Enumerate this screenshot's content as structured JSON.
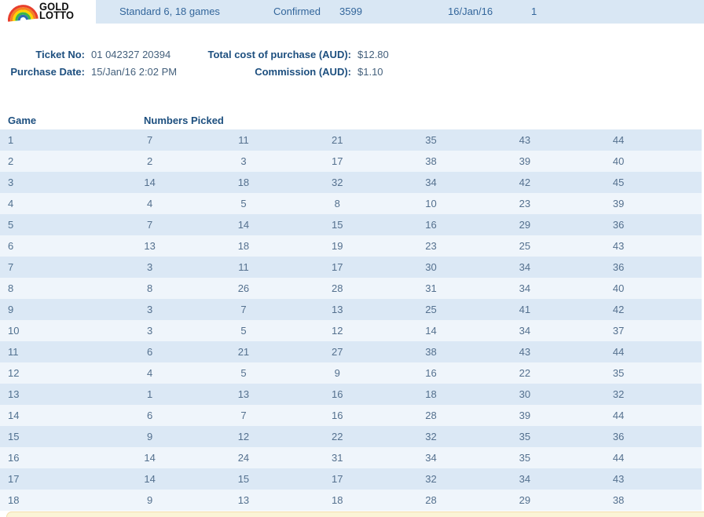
{
  "header": {
    "logo_line1": "GOLD",
    "logo_line2": "LOTTO",
    "game_type": "Standard 6, 18 games",
    "status": "Confirmed",
    "draw_number": "3599",
    "draw_date": "16/Jan/16",
    "draw_count": "1"
  },
  "ticket_info": {
    "ticket_no_label": "Ticket No:",
    "ticket_no_value": "01 042327 20394",
    "purchase_date_label": "Purchase Date:",
    "purchase_date_value": "15/Jan/16 2:02 PM",
    "total_cost_label": "Total cost of purchase (AUD):",
    "total_cost_value": "$12.80",
    "commission_label": "Commission (AUD):",
    "commission_value": "$1.10"
  },
  "games_table": {
    "game_header": "Game",
    "numbers_header": "Numbers Picked",
    "rows": [
      {
        "game": "1",
        "numbers": [
          7,
          11,
          21,
          35,
          43,
          44
        ]
      },
      {
        "game": "2",
        "numbers": [
          2,
          3,
          17,
          38,
          39,
          40
        ]
      },
      {
        "game": "3",
        "numbers": [
          14,
          18,
          32,
          34,
          42,
          45
        ]
      },
      {
        "game": "4",
        "numbers": [
          4,
          5,
          8,
          10,
          23,
          39
        ]
      },
      {
        "game": "5",
        "numbers": [
          7,
          14,
          15,
          16,
          29,
          36
        ]
      },
      {
        "game": "6",
        "numbers": [
          13,
          18,
          19,
          23,
          25,
          43
        ]
      },
      {
        "game": "7",
        "numbers": [
          3,
          11,
          17,
          30,
          34,
          36
        ]
      },
      {
        "game": "8",
        "numbers": [
          8,
          26,
          28,
          31,
          34,
          40
        ]
      },
      {
        "game": "9",
        "numbers": [
          3,
          7,
          13,
          25,
          41,
          42
        ]
      },
      {
        "game": "10",
        "numbers": [
          3,
          5,
          12,
          14,
          34,
          37
        ]
      },
      {
        "game": "11",
        "numbers": [
          6,
          21,
          27,
          38,
          43,
          44
        ]
      },
      {
        "game": "12",
        "numbers": [
          4,
          5,
          9,
          16,
          22,
          35
        ]
      },
      {
        "game": "13",
        "numbers": [
          1,
          13,
          16,
          18,
          30,
          32
        ]
      },
      {
        "game": "14",
        "numbers": [
          6,
          7,
          16,
          28,
          39,
          44
        ]
      },
      {
        "game": "15",
        "numbers": [
          9,
          12,
          22,
          32,
          35,
          36
        ]
      },
      {
        "game": "16",
        "numbers": [
          14,
          24,
          31,
          34,
          35,
          44
        ]
      },
      {
        "game": "17",
        "numbers": [
          14,
          15,
          17,
          32,
          34,
          43
        ]
      },
      {
        "game": "18",
        "numbers": [
          9,
          13,
          18,
          28,
          29,
          38
        ]
      }
    ]
  },
  "colors": {
    "header_bar_bg": "#d9e7f4",
    "row_stripe_dark": "#dbe8f5",
    "row_stripe_light": "#eff5fb",
    "label_blue": "#1d4f7f",
    "value_blue_gray": "#44607c",
    "header_text_blue": "#33669b",
    "number_text": "#54708e",
    "bottom_bar_yellow": "#fbf4d6"
  }
}
